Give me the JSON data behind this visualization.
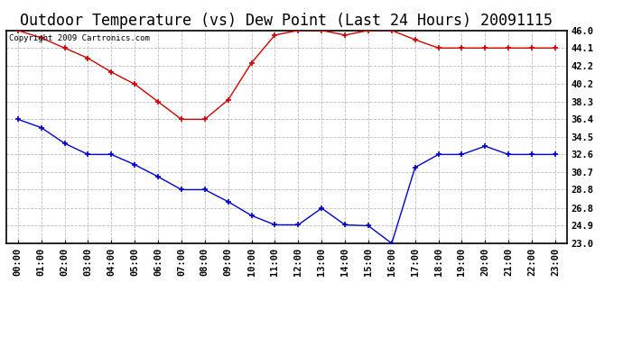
{
  "title": "Outdoor Temperature (vs) Dew Point (Last 24 Hours) 20091115",
  "copyright": "Copyright 2009 Cartronics.com",
  "x_labels": [
    "00:00",
    "01:00",
    "02:00",
    "03:00",
    "04:00",
    "05:00",
    "06:00",
    "07:00",
    "08:00",
    "09:00",
    "10:00",
    "11:00",
    "12:00",
    "13:00",
    "14:00",
    "15:00",
    "16:00",
    "17:00",
    "18:00",
    "19:00",
    "20:00",
    "21:00",
    "22:00",
    "23:00"
  ],
  "temp_data": [
    46.0,
    45.2,
    44.1,
    43.0,
    41.5,
    40.2,
    38.3,
    36.4,
    36.4,
    38.5,
    42.5,
    45.5,
    46.0,
    46.0,
    45.5,
    46.0,
    46.0,
    45.0,
    44.1,
    44.1,
    44.1,
    44.1,
    44.1,
    44.1
  ],
  "dew_data": [
    36.4,
    35.5,
    33.8,
    32.6,
    32.6,
    31.5,
    30.2,
    28.8,
    28.8,
    27.5,
    26.0,
    25.0,
    25.0,
    26.8,
    25.0,
    24.9,
    23.0,
    31.2,
    32.6,
    32.6,
    33.5,
    32.6,
    32.6,
    32.6
  ],
  "temp_color": "#cc0000",
  "dew_color": "#0000cc",
  "background_color": "#ffffff",
  "grid_color": "#bbbbbb",
  "ymin": 23.0,
  "ymax": 46.0,
  "yticks_right": [
    46.0,
    44.1,
    42.2,
    40.2,
    38.3,
    36.4,
    34.5,
    32.6,
    30.7,
    28.8,
    26.8,
    24.9,
    23.0
  ],
  "title_fontsize": 12,
  "tick_fontsize": 7.5
}
